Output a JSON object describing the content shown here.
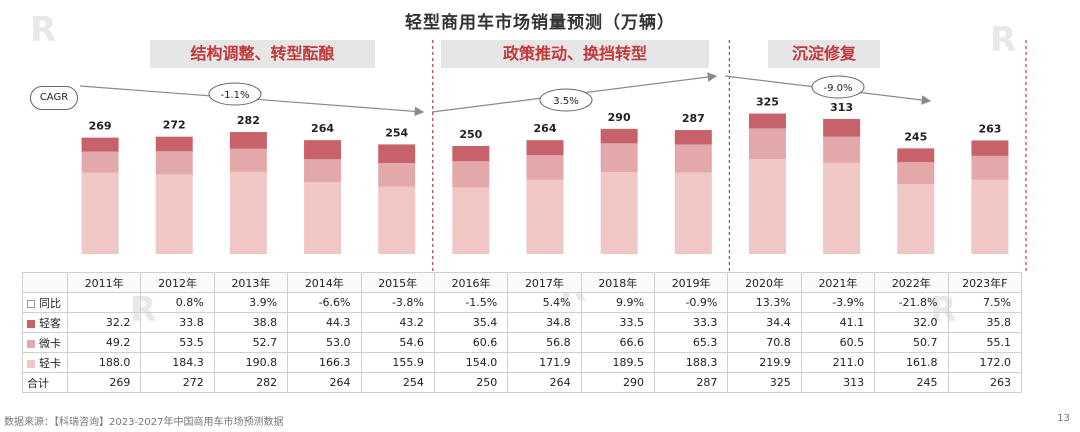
{
  "title": "轻型商用车市场销量预测（万辆）",
  "cagr_label": "CAGR",
  "phases": [
    {
      "label": "结构调整、转型酝酿",
      "cagr": "-1.1%"
    },
    {
      "label": "政策推动、换挡转型",
      "cagr": "3.5%"
    },
    {
      "label": "沉淀修复",
      "cagr": "-9.0%"
    }
  ],
  "colors": {
    "heavy": "#c8626a",
    "mini": "#e2a8aa",
    "light": "#f1c7c6",
    "divider": "#c0393d",
    "phase_text": "#c0393d"
  },
  "chart_data": {
    "type": "bar",
    "stacked": true,
    "categories": [
      "2011年",
      "2012年",
      "2013年",
      "2014年",
      "2015年",
      "2016年",
      "2017年",
      "2018年",
      "2019年",
      "2020年",
      "2021年",
      "2022年",
      "2023年F"
    ],
    "series": [
      {
        "name": "轻卡",
        "values": [
          188.0,
          184.3,
          190.8,
          166.3,
          155.9,
          154.0,
          171.9,
          189.5,
          188.3,
          219.9,
          211.0,
          161.8,
          172.0
        ]
      },
      {
        "name": "微卡",
        "values": [
          49.2,
          53.5,
          52.7,
          53.0,
          54.6,
          60.6,
          56.8,
          66.6,
          65.3,
          70.8,
          60.5,
          50.7,
          55.1
        ]
      },
      {
        "name": "轻客",
        "values": [
          32.2,
          33.8,
          38.8,
          44.3,
          43.2,
          35.4,
          34.8,
          33.5,
          33.3,
          34.4,
          41.1,
          32.0,
          35.8
        ]
      }
    ],
    "totals": [
      "269",
      "272",
      "282",
      "264",
      "254",
      "250",
      "264",
      "290",
      "287",
      "325",
      "313",
      "245",
      "263"
    ],
    "ylim": [
      0,
      350
    ]
  },
  "table": {
    "rows": [
      {
        "label": "同比",
        "values": [
          "",
          "0.8%",
          "3.9%",
          "-6.6%",
          "-3.8%",
          "-1.5%",
          "5.4%",
          "9.9%",
          "-0.9%",
          "13.3%",
          "-3.9%",
          "-21.8%",
          "7.5%"
        ]
      },
      {
        "label": "轻客",
        "values": [
          "32.2",
          "33.8",
          "38.8",
          "44.3",
          "43.2",
          "35.4",
          "34.8",
          "33.5",
          "33.3",
          "34.4",
          "41.1",
          "32.0",
          "35.8"
        ]
      },
      {
        "label": "微卡",
        "values": [
          "49.2",
          "53.5",
          "52.7",
          "53.0",
          "54.6",
          "60.6",
          "56.8",
          "66.6",
          "65.3",
          "70.8",
          "60.5",
          "50.7",
          "55.1"
        ]
      },
      {
        "label": "轻卡",
        "values": [
          "188.0",
          "184.3",
          "190.8",
          "166.3",
          "155.9",
          "154.0",
          "171.9",
          "189.5",
          "188.3",
          "219.9",
          "211.0",
          "161.8",
          "172.0"
        ]
      },
      {
        "label": "合计",
        "values": [
          "269",
          "272",
          "282",
          "264",
          "254",
          "250",
          "264",
          "290",
          "287",
          "325",
          "313",
          "245",
          "263"
        ]
      }
    ]
  },
  "footer": "数据来源：【科瑞咨询】2023-2027年中国商用车市场预测数据",
  "page_number": "13"
}
